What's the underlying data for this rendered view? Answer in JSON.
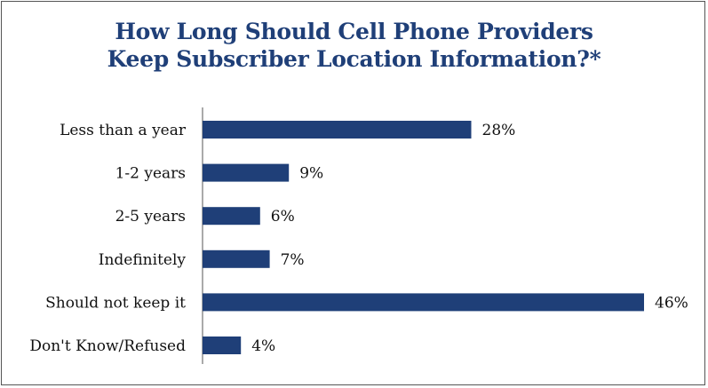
{
  "chart_data": {
    "type": "bar",
    "orientation": "horizontal",
    "title_lines": [
      "How Long Should Cell Phone Providers",
      "Keep Subscriber Location Information?*"
    ],
    "categories": [
      "Less than a year",
      "1-2 years",
      "2-5 years",
      "Indefinitely",
      "Should not keep it",
      "Don't Know/Refused"
    ],
    "values": [
      28,
      9,
      6,
      7,
      46,
      4
    ],
    "value_labels": [
      "28%",
      "9%",
      "6%",
      "7%",
      "46%",
      "4%"
    ],
    "xlim": [
      0,
      46
    ],
    "grid": false,
    "legend": "none",
    "bar_color": "#1f3f78",
    "title_color": "#1f3f78"
  }
}
